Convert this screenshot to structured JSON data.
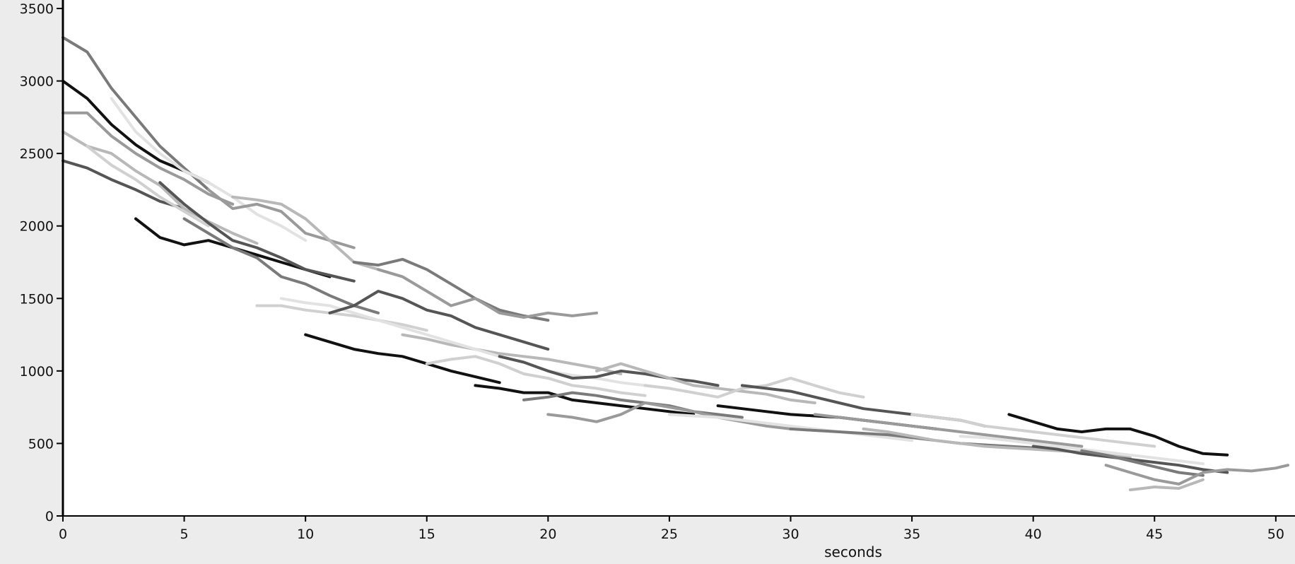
{
  "chart_data": {
    "type": "line",
    "title": "",
    "xlabel": "seconds",
    "ylabel": "",
    "xlim": [
      0,
      50.5
    ],
    "ylim": [
      0,
      3500
    ],
    "xticks": [
      0,
      5,
      10,
      15,
      20,
      25,
      30,
      35,
      40,
      45,
      50
    ],
    "yticks": [
      0,
      500,
      1000,
      1500,
      2000,
      2500,
      3000,
      3500
    ],
    "grid": false,
    "legend": "none",
    "colors": {
      "background": "#ffffff",
      "frame": "#ececec",
      "axis": "#000000",
      "series_palette": [
        "#111111",
        "#555555",
        "#7a7a7a",
        "#9a9a9a",
        "#b8b8b8",
        "#d0d0d0",
        "#e2e2e2"
      ]
    },
    "series": [
      {
        "x": [
          0,
          1,
          2,
          3,
          4,
          5,
          6
        ],
        "values": [
          3000,
          2880,
          2700,
          2560,
          2450,
          2380,
          2300
        ]
      },
      {
        "x": [
          0,
          1,
          2,
          3,
          4,
          5
        ],
        "values": [
          2450,
          2400,
          2320,
          2250,
          2170,
          2120
        ]
      },
      {
        "x": [
          0,
          1,
          2,
          3,
          4,
          5,
          6
        ],
        "values": [
          3300,
          3200,
          2950,
          2750,
          2550,
          2400,
          2250
        ]
      },
      {
        "x": [
          0,
          1,
          2,
          3,
          4,
          5,
          6,
          7
        ],
        "values": [
          2780,
          2780,
          2620,
          2500,
          2400,
          2320,
          2220,
          2150
        ]
      },
      {
        "x": [
          0,
          1,
          2,
          3,
          4,
          5,
          6,
          7,
          8
        ],
        "values": [
          2650,
          2550,
          2500,
          2380,
          2280,
          2120,
          2030,
          1950,
          1880
        ]
      },
      {
        "x": [
          1,
          2,
          3,
          4,
          5,
          6
        ],
        "values": [
          2550,
          2420,
          2320,
          2200,
          2100,
          2000
        ]
      },
      {
        "x": [
          2,
          3,
          4,
          5,
          6,
          7,
          8,
          9,
          10
        ],
        "values": [
          2880,
          2650,
          2500,
          2380,
          2300,
          2200,
          2080,
          2000,
          1900
        ]
      },
      {
        "x": [
          3,
          4,
          5,
          6,
          7,
          8,
          9,
          10,
          11
        ],
        "values": [
          2050,
          1920,
          1870,
          1900,
          1850,
          1800,
          1750,
          1700,
          1650
        ]
      },
      {
        "x": [
          4,
          5,
          6,
          7,
          8,
          9,
          10,
          11,
          12
        ],
        "values": [
          2300,
          2150,
          2020,
          1900,
          1850,
          1780,
          1700,
          1660,
          1620
        ]
      },
      {
        "x": [
          5,
          6,
          7,
          8,
          9,
          10,
          11,
          12,
          13
        ],
        "values": [
          2050,
          1950,
          1850,
          1780,
          1650,
          1600,
          1520,
          1450,
          1400
        ]
      },
      {
        "x": [
          6,
          7,
          8,
          9,
          10,
          11,
          12
        ],
        "values": [
          2250,
          2120,
          2150,
          2100,
          1950,
          1900,
          1850
        ]
      },
      {
        "x": [
          7,
          8,
          9,
          10,
          11,
          12,
          13,
          14
        ],
        "values": [
          2200,
          2180,
          2150,
          2050,
          1900,
          1750,
          1700,
          1650
        ]
      },
      {
        "x": [
          8,
          9,
          10,
          11,
          12,
          13,
          14,
          15
        ],
        "values": [
          1450,
          1450,
          1420,
          1400,
          1380,
          1350,
          1320,
          1280
        ]
      },
      {
        "x": [
          9,
          10,
          11,
          12,
          13,
          14,
          15,
          16
        ],
        "values": [
          1500,
          1470,
          1450,
          1400,
          1350,
          1300,
          1250,
          1200
        ]
      },
      {
        "x": [
          10,
          11,
          12,
          13,
          14,
          15,
          16,
          17,
          18
        ],
        "values": [
          1250,
          1200,
          1150,
          1120,
          1100,
          1050,
          1000,
          960,
          920
        ]
      },
      {
        "x": [
          11,
          12,
          13,
          14,
          15,
          16,
          17,
          18,
          19,
          20
        ],
        "values": [
          1400,
          1450,
          1550,
          1500,
          1420,
          1380,
          1300,
          1250,
          1200,
          1150
        ]
      },
      {
        "x": [
          12,
          13,
          14,
          15,
          16,
          17,
          18,
          19,
          20
        ],
        "values": [
          1750,
          1730,
          1770,
          1700,
          1600,
          1500,
          1420,
          1380,
          1350
        ]
      },
      {
        "x": [
          13,
          14,
          15,
          16,
          17,
          18,
          19,
          20,
          21,
          22
        ],
        "values": [
          1700,
          1650,
          1550,
          1450,
          1500,
          1400,
          1370,
          1400,
          1380,
          1400
        ]
      },
      {
        "x": [
          14,
          15,
          16,
          17,
          18,
          19,
          20,
          21,
          22,
          23
        ],
        "values": [
          1250,
          1220,
          1180,
          1150,
          1120,
          1100,
          1080,
          1050,
          1020,
          980
        ]
      },
      {
        "x": [
          15,
          16,
          17,
          18,
          19,
          20,
          21,
          22,
          23,
          24
        ],
        "values": [
          1050,
          1080,
          1100,
          1050,
          980,
          950,
          900,
          880,
          850,
          830
        ]
      },
      {
        "x": [
          16,
          17,
          18,
          19,
          20,
          21,
          22,
          23,
          24,
          25
        ],
        "values": [
          1200,
          1150,
          1100,
          1060,
          1000,
          970,
          950,
          920,
          900,
          880
        ]
      },
      {
        "x": [
          17,
          18,
          19,
          20,
          21,
          22,
          23,
          24,
          25,
          26
        ],
        "values": [
          900,
          880,
          850,
          850,
          800,
          780,
          760,
          740,
          720,
          700
        ]
      },
      {
        "x": [
          18,
          19,
          20,
          21,
          22,
          23,
          24,
          25,
          26,
          27
        ],
        "values": [
          1100,
          1060,
          1000,
          950,
          960,
          1000,
          980,
          950,
          930,
          900
        ]
      },
      {
        "x": [
          19,
          20,
          21,
          22,
          23,
          24,
          25,
          26,
          27,
          28
        ],
        "values": [
          800,
          820,
          850,
          830,
          800,
          780,
          760,
          720,
          700,
          680
        ]
      },
      {
        "x": [
          20,
          21,
          22,
          23,
          24,
          25,
          26,
          27,
          28,
          29,
          30
        ],
        "values": [
          700,
          680,
          650,
          700,
          780,
          750,
          720,
          680,
          650,
          620,
          600
        ]
      },
      {
        "x": [
          22,
          23,
          24,
          25,
          26,
          27,
          28,
          29,
          30,
          31
        ],
        "values": [
          1000,
          1050,
          1000,
          950,
          900,
          880,
          860,
          840,
          800,
          780
        ]
      },
      {
        "x": [
          24,
          25,
          26,
          27,
          28,
          29,
          30,
          31,
          32,
          33
        ],
        "values": [
          900,
          880,
          850,
          820,
          880,
          900,
          950,
          900,
          850,
          820
        ]
      },
      {
        "x": [
          25,
          26,
          27,
          28,
          29,
          30,
          31,
          32,
          33,
          34,
          35
        ],
        "values": [
          700,
          690,
          680,
          660,
          640,
          620,
          600,
          580,
          560,
          540,
          520
        ]
      },
      {
        "x": [
          27,
          28,
          29,
          30,
          31,
          32,
          33,
          34,
          35,
          36
        ],
        "values": [
          760,
          740,
          720,
          700,
          690,
          680,
          660,
          640,
          620,
          600
        ]
      },
      {
        "x": [
          28,
          29,
          30,
          31,
          32,
          33,
          34,
          35,
          36,
          37,
          38
        ],
        "values": [
          900,
          880,
          860,
          820,
          780,
          740,
          720,
          700,
          680,
          660,
          620
        ]
      },
      {
        "x": [
          30,
          31,
          32,
          33,
          34,
          35,
          36,
          37,
          38,
          39,
          40
        ],
        "values": [
          600,
          590,
          580,
          570,
          560,
          540,
          520,
          500,
          490,
          480,
          470
        ]
      },
      {
        "x": [
          31,
          32,
          33,
          34,
          35,
          36,
          37,
          38,
          39,
          40,
          41,
          42
        ],
        "values": [
          700,
          680,
          660,
          640,
          620,
          600,
          580,
          560,
          540,
          520,
          500,
          480
        ]
      },
      {
        "x": [
          33,
          34,
          35,
          36,
          37,
          38,
          39,
          40,
          41,
          42,
          43,
          44
        ],
        "values": [
          600,
          580,
          550,
          520,
          500,
          480,
          470,
          460,
          450,
          440,
          420,
          400
        ]
      },
      {
        "x": [
          35,
          36,
          37,
          38,
          39,
          40,
          41,
          42,
          43,
          44,
          45
        ],
        "values": [
          700,
          680,
          660,
          620,
          600,
          580,
          560,
          540,
          520,
          500,
          480
        ]
      },
      {
        "x": [
          37,
          38,
          39,
          40,
          41,
          42,
          43,
          44,
          45,
          46,
          47
        ],
        "values": [
          550,
          540,
          520,
          500,
          480,
          460,
          440,
          420,
          400,
          380,
          360
        ]
      },
      {
        "x": [
          39,
          40,
          41,
          42,
          43,
          44,
          45,
          46,
          47,
          48
        ],
        "values": [
          700,
          650,
          600,
          580,
          600,
          600,
          550,
          480,
          430,
          420
        ]
      },
      {
        "x": [
          40,
          41,
          42,
          43,
          44,
          45,
          46,
          47,
          48
        ],
        "values": [
          480,
          460,
          430,
          410,
          390,
          370,
          350,
          320,
          300
        ]
      },
      {
        "x": [
          42,
          43,
          44,
          45,
          46,
          47
        ],
        "values": [
          450,
          420,
          380,
          340,
          300,
          280
        ]
      },
      {
        "x": [
          43,
          44,
          45,
          46,
          47,
          48,
          49,
          50,
          50.5
        ],
        "values": [
          350,
          300,
          250,
          220,
          300,
          320,
          310,
          330,
          350
        ]
      },
      {
        "x": [
          44,
          45,
          46,
          47
        ],
        "values": [
          180,
          200,
          190,
          250
        ]
      }
    ]
  }
}
